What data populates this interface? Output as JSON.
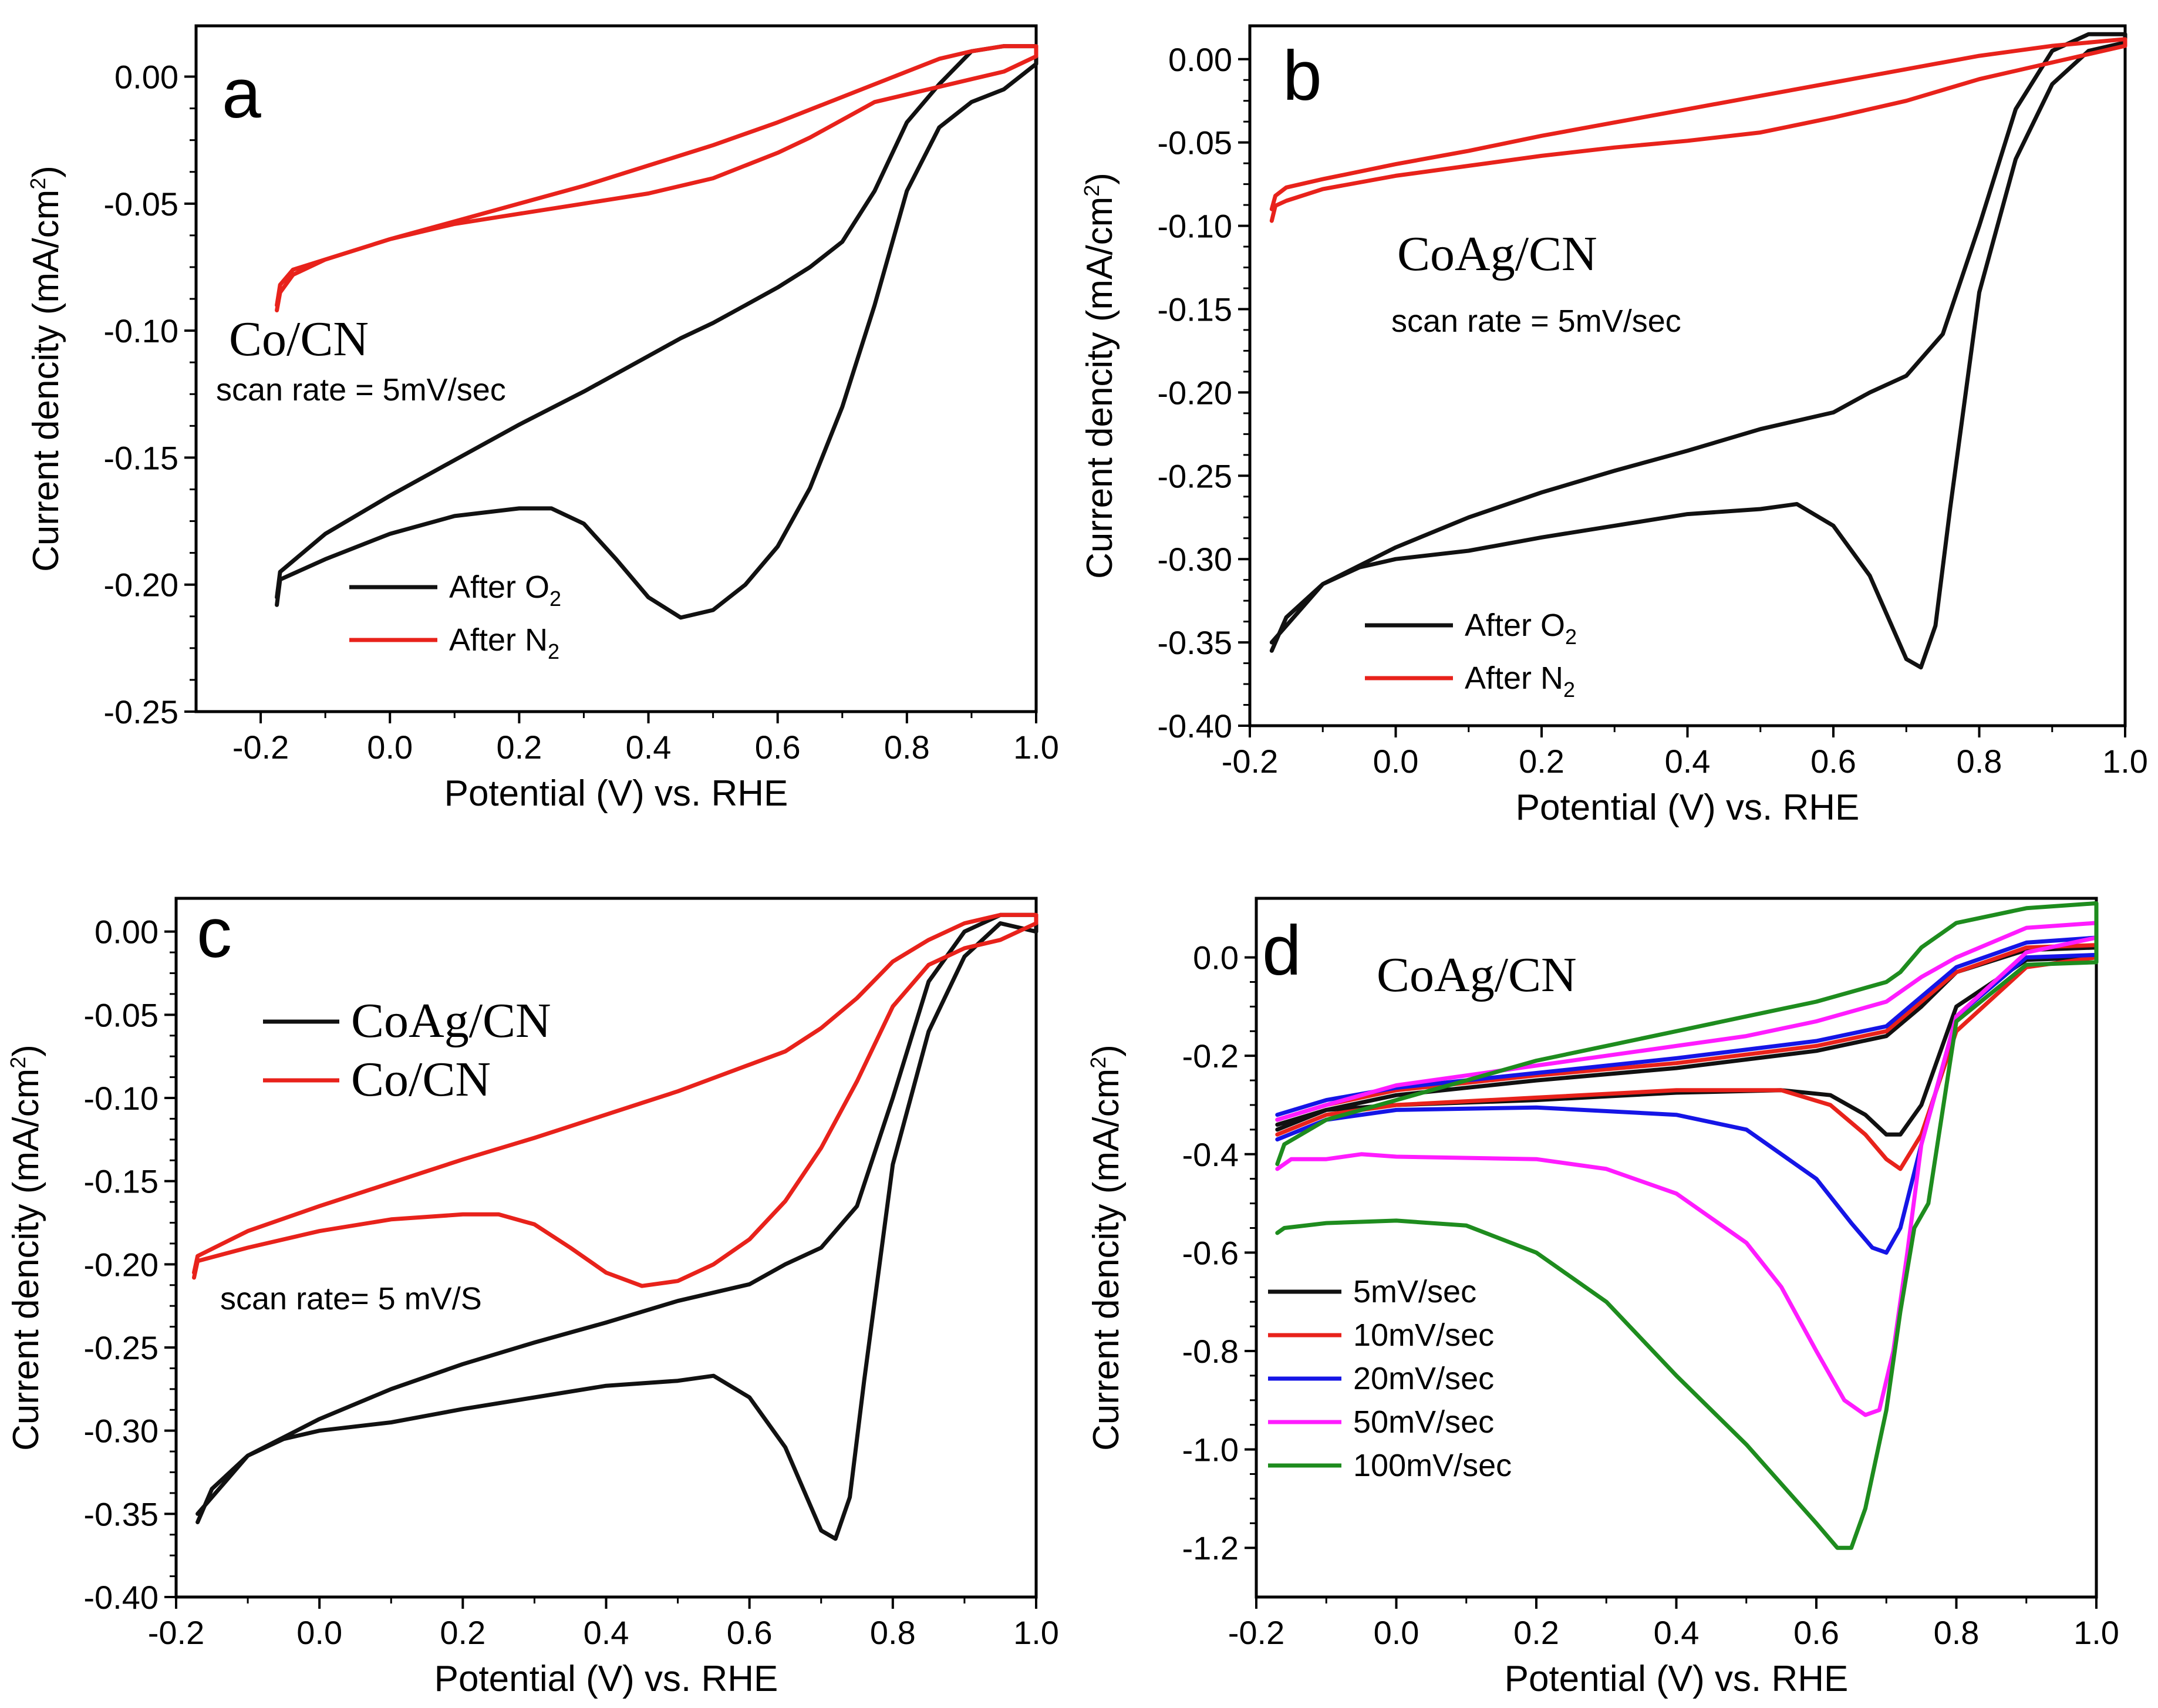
{
  "colors": {
    "black": "#111111",
    "red": "#e8221b",
    "blue": "#1515e6",
    "magenta": "#ff1cff",
    "green": "#1e8c1e"
  },
  "chart_data": [
    {
      "type": "line",
      "panel": "a",
      "sample_label": "Co/CN",
      "note": "scan rate = 5mV/sec",
      "xlabel": "Potential (V) vs. RHE",
      "ylabel": "Current dencity (mA/cm2)",
      "xlim": [
        -0.3,
        1.0
      ],
      "ylim": [
        -0.25,
        0.02
      ],
      "xticks": [
        -0.2,
        0.0,
        0.2,
        0.4,
        0.6,
        0.8,
        1.0
      ],
      "xtick_labels": [
        "-0.2",
        "0.0",
        "0.2",
        "0.4",
        "0.6",
        "0.8",
        "1.0"
      ],
      "yticks": [
        0.0,
        -0.05,
        -0.1,
        -0.15,
        -0.2,
        -0.25
      ],
      "ytick_labels": [
        "0.00",
        "-0.05",
        "-0.10",
        "-0.15",
        "-0.20",
        "-0.25"
      ],
      "legend": {
        "position": "bottom-left"
      },
      "series": [
        {
          "name": "After O2",
          "label": "After O",
          "sub": "2",
          "color": "black",
          "x": [
            -0.175,
            -0.17,
            -0.1,
            0.0,
            0.1,
            0.2,
            0.25,
            0.3,
            0.35,
            0.4,
            0.45,
            0.5,
            0.55,
            0.6,
            0.65,
            0.7,
            0.75,
            0.8,
            0.85,
            0.9,
            0.95,
            1.0,
            1.0,
            0.95,
            0.9,
            0.85,
            0.8,
            0.75,
            0.7,
            0.65,
            0.6,
            0.55,
            0.5,
            0.45,
            0.4,
            0.35,
            0.3,
            0.2,
            0.1,
            0.0,
            -0.1,
            -0.17,
            -0.175
          ],
          "y": [
            -0.208,
            -0.198,
            -0.19,
            -0.18,
            -0.173,
            -0.17,
            -0.17,
            -0.176,
            -0.19,
            -0.205,
            -0.213,
            -0.21,
            -0.2,
            -0.185,
            -0.162,
            -0.13,
            -0.09,
            -0.045,
            -0.02,
            -0.01,
            -0.005,
            0.005,
            0.012,
            0.012,
            0.01,
            -0.003,
            -0.018,
            -0.045,
            -0.065,
            -0.075,
            -0.083,
            -0.09,
            -0.097,
            -0.103,
            -0.11,
            -0.117,
            -0.124,
            -0.137,
            -0.151,
            -0.165,
            -0.18,
            -0.195,
            -0.205
          ]
        },
        {
          "name": "After N2",
          "label": "After N",
          "sub": "2",
          "color": "red",
          "x": [
            -0.175,
            -0.17,
            -0.15,
            -0.1,
            0.0,
            0.1,
            0.2,
            0.3,
            0.4,
            0.5,
            0.6,
            0.65,
            0.7,
            0.75,
            0.8,
            0.85,
            0.9,
            0.95,
            1.0,
            1.0,
            0.95,
            0.9,
            0.85,
            0.8,
            0.7,
            0.6,
            0.5,
            0.4,
            0.3,
            0.2,
            0.1,
            0.0,
            -0.1,
            -0.15,
            -0.17,
            -0.175
          ],
          "y": [
            -0.092,
            -0.085,
            -0.078,
            -0.072,
            -0.064,
            -0.058,
            -0.054,
            -0.05,
            -0.046,
            -0.04,
            -0.03,
            -0.024,
            -0.017,
            -0.01,
            -0.007,
            -0.004,
            -0.001,
            0.002,
            0.008,
            0.012,
            0.012,
            0.01,
            0.007,
            0.002,
            -0.008,
            -0.018,
            -0.027,
            -0.035,
            -0.043,
            -0.05,
            -0.057,
            -0.064,
            -0.072,
            -0.076,
            -0.082,
            -0.09
          ]
        }
      ]
    },
    {
      "type": "line",
      "panel": "b",
      "sample_label": "CoAg/CN",
      "note": "scan rate = 5mV/sec",
      "xlabel": "Potential (V) vs. RHE",
      "ylabel": "Current dencity (mA/cm2)",
      "xlim": [
        -0.2,
        1.0
      ],
      "ylim": [
        -0.4,
        0.02
      ],
      "xticks": [
        -0.2,
        0.0,
        0.2,
        0.4,
        0.6,
        0.8,
        1.0
      ],
      "xtick_labels": [
        "-0.2",
        "0.0",
        "0.2",
        "0.4",
        "0.6",
        "0.8",
        "1.0"
      ],
      "yticks": [
        0.0,
        -0.05,
        -0.1,
        -0.15,
        -0.2,
        -0.25,
        -0.3,
        -0.35,
        -0.4
      ],
      "ytick_labels": [
        "0.00",
        "-0.05",
        "-0.10",
        "-0.15",
        "-0.20",
        "-0.25",
        "-0.30",
        "-0.35",
        "-0.40"
      ],
      "legend": {
        "position": "bottom-left"
      },
      "series": [
        {
          "name": "After O2",
          "label": "After O",
          "sub": "2",
          "color": "black",
          "x": [
            -0.17,
            -0.15,
            -0.1,
            -0.05,
            0.0,
            0.1,
            0.2,
            0.3,
            0.4,
            0.5,
            0.55,
            0.6,
            0.65,
            0.68,
            0.7,
            0.72,
            0.74,
            0.76,
            0.8,
            0.85,
            0.9,
            0.95,
            1.0,
            1.0,
            0.95,
            0.9,
            0.85,
            0.8,
            0.75,
            0.7,
            0.65,
            0.6,
            0.5,
            0.4,
            0.3,
            0.2,
            0.1,
            0.0,
            -0.1,
            -0.17
          ],
          "y": [
            -0.355,
            -0.335,
            -0.315,
            -0.305,
            -0.3,
            -0.295,
            -0.287,
            -0.28,
            -0.273,
            -0.27,
            -0.267,
            -0.28,
            -0.31,
            -0.34,
            -0.36,
            -0.365,
            -0.34,
            -0.27,
            -0.14,
            -0.06,
            -0.015,
            0.005,
            0.01,
            0.015,
            0.015,
            0.005,
            -0.03,
            -0.1,
            -0.165,
            -0.19,
            -0.2,
            -0.212,
            -0.222,
            -0.235,
            -0.247,
            -0.26,
            -0.275,
            -0.293,
            -0.315,
            -0.35
          ]
        },
        {
          "name": "After N2",
          "label": "After N",
          "sub": "2",
          "color": "red",
          "x": [
            -0.17,
            -0.165,
            -0.15,
            -0.1,
            0.0,
            0.1,
            0.2,
            0.3,
            0.4,
            0.5,
            0.6,
            0.7,
            0.8,
            0.9,
            1.0,
            1.0,
            0.9,
            0.8,
            0.7,
            0.6,
            0.5,
            0.4,
            0.3,
            0.2,
            0.1,
            0.0,
            -0.1,
            -0.15,
            -0.165,
            -0.17
          ],
          "y": [
            -0.097,
            -0.088,
            -0.085,
            -0.078,
            -0.07,
            -0.064,
            -0.058,
            -0.053,
            -0.049,
            -0.044,
            -0.035,
            -0.025,
            -0.012,
            -0.002,
            0.008,
            0.012,
            0.008,
            0.002,
            -0.006,
            -0.014,
            -0.022,
            -0.03,
            -0.038,
            -0.046,
            -0.055,
            -0.063,
            -0.072,
            -0.077,
            -0.082,
            -0.09
          ]
        }
      ]
    },
    {
      "type": "line",
      "panel": "c",
      "note": "scan rate= 5 mV/S",
      "xlabel": "Potential (V) vs. RHE",
      "ylabel": "Current dencity (mA/cm2)",
      "xlim": [
        -0.2,
        1.0
      ],
      "ylim": [
        -0.4,
        0.02
      ],
      "xticks": [
        -0.2,
        0.0,
        0.2,
        0.4,
        0.6,
        0.8,
        1.0
      ],
      "xtick_labels": [
        "-0.2",
        "0.0",
        "0.2",
        "0.4",
        "0.6",
        "0.8",
        "1.0"
      ],
      "yticks": [
        0.0,
        -0.05,
        -0.1,
        -0.15,
        -0.2,
        -0.25,
        -0.3,
        -0.35,
        -0.4
      ],
      "ytick_labels": [
        "0.00",
        "-0.05",
        "-0.10",
        "-0.15",
        "-0.20",
        "-0.25",
        "-0.30",
        "-0.35",
        "-0.40"
      ],
      "legend": {
        "position": "top-left"
      },
      "series": [
        {
          "name": "CoAg/CN",
          "label": "CoAg/CN",
          "color": "black",
          "x": [
            -0.17,
            -0.15,
            -0.1,
            -0.05,
            0.0,
            0.1,
            0.2,
            0.3,
            0.4,
            0.5,
            0.55,
            0.6,
            0.65,
            0.68,
            0.7,
            0.72,
            0.74,
            0.76,
            0.8,
            0.85,
            0.9,
            0.95,
            1.0,
            1.0,
            0.95,
            0.9,
            0.85,
            0.8,
            0.75,
            0.7,
            0.65,
            0.6,
            0.5,
            0.4,
            0.3,
            0.2,
            0.1,
            0.0,
            -0.1,
            -0.17
          ],
          "y": [
            -0.355,
            -0.335,
            -0.315,
            -0.305,
            -0.3,
            -0.295,
            -0.287,
            -0.28,
            -0.273,
            -0.27,
            -0.267,
            -0.28,
            -0.31,
            -0.34,
            -0.36,
            -0.365,
            -0.34,
            -0.27,
            -0.14,
            -0.06,
            -0.015,
            0.005,
            0.0,
            0.01,
            0.01,
            0.0,
            -0.03,
            -0.1,
            -0.165,
            -0.19,
            -0.2,
            -0.212,
            -0.222,
            -0.235,
            -0.247,
            -0.26,
            -0.275,
            -0.293,
            -0.315,
            -0.35
          ]
        },
        {
          "name": "Co/CN",
          "label": "Co/CN",
          "color": "red",
          "x": [
            -0.175,
            -0.17,
            -0.1,
            0.0,
            0.1,
            0.2,
            0.25,
            0.3,
            0.35,
            0.4,
            0.45,
            0.5,
            0.55,
            0.6,
            0.65,
            0.7,
            0.75,
            0.8,
            0.85,
            0.9,
            0.95,
            1.0,
            1.0,
            0.95,
            0.9,
            0.85,
            0.8,
            0.75,
            0.7,
            0.65,
            0.6,
            0.55,
            0.5,
            0.45,
            0.4,
            0.35,
            0.3,
            0.2,
            0.1,
            0.0,
            -0.1,
            -0.17,
            -0.175
          ],
          "y": [
            -0.208,
            -0.198,
            -0.19,
            -0.18,
            -0.173,
            -0.17,
            -0.17,
            -0.176,
            -0.19,
            -0.205,
            -0.213,
            -0.21,
            -0.2,
            -0.185,
            -0.162,
            -0.13,
            -0.09,
            -0.045,
            -0.02,
            -0.01,
            -0.005,
            0.005,
            0.01,
            0.01,
            0.005,
            -0.005,
            -0.018,
            -0.04,
            -0.058,
            -0.072,
            -0.08,
            -0.088,
            -0.096,
            -0.103,
            -0.11,
            -0.117,
            -0.124,
            -0.137,
            -0.151,
            -0.165,
            -0.18,
            -0.195,
            -0.205
          ]
        }
      ]
    },
    {
      "type": "line",
      "panel": "d",
      "sample_label": "CoAg/CN",
      "xlabel": "Potential (V) vs. RHE",
      "ylabel": "Current dencity (mA/cm2)",
      "xlim": [
        -0.2,
        1.0
      ],
      "ylim": [
        -1.3,
        0.12
      ],
      "xticks": [
        -0.2,
        0.0,
        0.2,
        0.4,
        0.6,
        0.8,
        1.0
      ],
      "xtick_labels": [
        "-0.2",
        "0.0",
        "0.2",
        "0.4",
        "0.6",
        "0.8",
        "1.0"
      ],
      "yticks": [
        0.0,
        -0.2,
        -0.4,
        -0.6,
        -0.8,
        -1.0,
        -1.2
      ],
      "ytick_labels": [
        "0.0",
        "-0.2",
        "-0.4",
        "-0.6",
        "-0.8",
        "-1.0",
        "-1.2"
      ],
      "legend": {
        "position": "bottom-left"
      },
      "series": [
        {
          "name": "5mV/sec",
          "label": "5mV/sec",
          "color": "black",
          "x": [
            -0.17,
            -0.1,
            0.0,
            0.2,
            0.4,
            0.55,
            0.62,
            0.67,
            0.7,
            0.72,
            0.75,
            0.8,
            0.9,
            1.0,
            1.0,
            0.9,
            0.8,
            0.75,
            0.7,
            0.6,
            0.4,
            0.2,
            0.0,
            -0.1,
            -0.17
          ],
          "y": [
            -0.35,
            -0.31,
            -0.3,
            -0.29,
            -0.275,
            -0.27,
            -0.28,
            -0.32,
            -0.36,
            -0.36,
            -0.3,
            -0.1,
            -0.005,
            0.0,
            0.02,
            0.015,
            -0.03,
            -0.1,
            -0.16,
            -0.19,
            -0.225,
            -0.25,
            -0.28,
            -0.31,
            -0.34
          ]
        },
        {
          "name": "10mV/sec",
          "label": "10mV/sec",
          "color": "red",
          "x": [
            -0.17,
            -0.1,
            0.0,
            0.2,
            0.4,
            0.55,
            0.62,
            0.67,
            0.7,
            0.72,
            0.75,
            0.8,
            0.9,
            1.0,
            1.0,
            0.9,
            0.8,
            0.75,
            0.7,
            0.6,
            0.4,
            0.2,
            0.0,
            -0.1,
            -0.17
          ],
          "y": [
            -0.36,
            -0.32,
            -0.3,
            -0.285,
            -0.27,
            -0.27,
            -0.3,
            -0.36,
            -0.41,
            -0.43,
            -0.36,
            -0.15,
            -0.02,
            0.0,
            0.025,
            0.02,
            -0.03,
            -0.09,
            -0.15,
            -0.18,
            -0.215,
            -0.24,
            -0.27,
            -0.3,
            -0.33
          ]
        },
        {
          "name": "20mV/sec",
          "label": "20mV/sec",
          "color": "blue",
          "x": [
            -0.17,
            -0.1,
            0.0,
            0.2,
            0.4,
            0.5,
            0.6,
            0.65,
            0.68,
            0.7,
            0.72,
            0.75,
            0.8,
            0.9,
            1.0,
            1.0,
            0.9,
            0.8,
            0.75,
            0.7,
            0.6,
            0.4,
            0.2,
            0.0,
            -0.1,
            -0.17
          ],
          "y": [
            -0.37,
            -0.33,
            -0.31,
            -0.305,
            -0.32,
            -0.35,
            -0.45,
            -0.54,
            -0.59,
            -0.6,
            -0.55,
            -0.38,
            -0.12,
            0.0,
            0.005,
            0.04,
            0.03,
            -0.02,
            -0.08,
            -0.14,
            -0.17,
            -0.205,
            -0.235,
            -0.265,
            -0.29,
            -0.32
          ]
        },
        {
          "name": "50mV/sec",
          "label": "50mV/sec",
          "color": "magenta",
          "x": [
            -0.17,
            -0.15,
            -0.1,
            -0.05,
            0.0,
            0.2,
            0.3,
            0.4,
            0.5,
            0.55,
            0.6,
            0.64,
            0.67,
            0.69,
            0.71,
            0.73,
            0.75,
            0.8,
            0.9,
            1.0,
            1.0,
            0.9,
            0.8,
            0.75,
            0.7,
            0.6,
            0.5,
            0.4,
            0.2,
            0.0,
            -0.1,
            -0.17
          ],
          "y": [
            -0.43,
            -0.41,
            -0.41,
            -0.4,
            -0.405,
            -0.41,
            -0.43,
            -0.48,
            -0.58,
            -0.67,
            -0.8,
            -0.9,
            -0.93,
            -0.92,
            -0.8,
            -0.6,
            -0.38,
            -0.12,
            0.01,
            0.04,
            0.07,
            0.06,
            0.0,
            -0.04,
            -0.09,
            -0.13,
            -0.16,
            -0.18,
            -0.22,
            -0.26,
            -0.3,
            -0.33
          ]
        },
        {
          "name": "100mV/sec",
          "label": "100mV/sec",
          "color": "green",
          "x": [
            -0.17,
            -0.16,
            -0.1,
            0.0,
            0.1,
            0.2,
            0.3,
            0.4,
            0.5,
            0.55,
            0.6,
            0.63,
            0.65,
            0.67,
            0.7,
            0.72,
            0.74,
            0.76,
            0.8,
            0.9,
            1.0,
            1.0,
            0.9,
            0.8,
            0.75,
            0.72,
            0.7,
            0.6,
            0.5,
            0.4,
            0.3,
            0.2,
            0.1,
            0.0,
            -0.1,
            -0.16,
            -0.17
          ],
          "y": [
            -0.56,
            -0.55,
            -0.54,
            -0.535,
            -0.545,
            -0.6,
            -0.7,
            -0.85,
            -0.99,
            -1.07,
            -1.15,
            -1.2,
            -1.2,
            -1.12,
            -0.92,
            -0.72,
            -0.55,
            -0.5,
            -0.13,
            -0.015,
            -0.01,
            0.11,
            0.1,
            0.07,
            0.02,
            -0.03,
            -0.05,
            -0.09,
            -0.12,
            -0.15,
            -0.18,
            -0.21,
            -0.25,
            -0.29,
            -0.33,
            -0.38,
            -0.42
          ]
        }
      ]
    }
  ]
}
